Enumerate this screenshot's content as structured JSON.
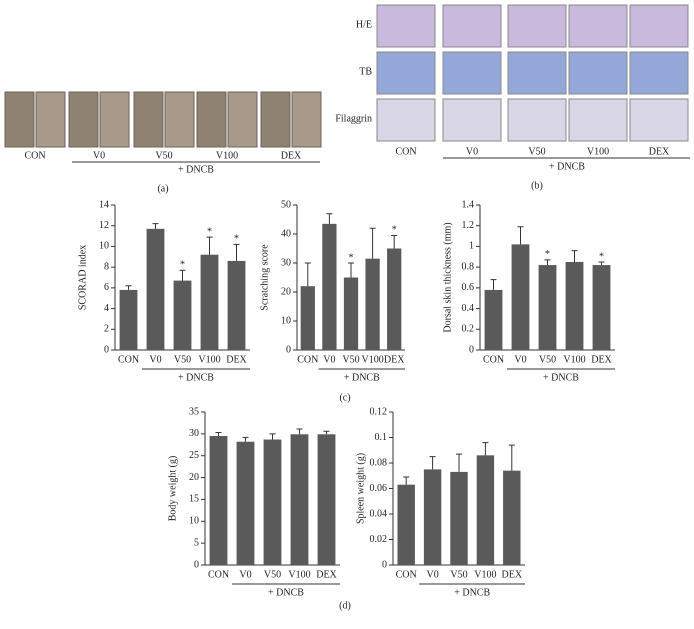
{
  "panels": {
    "a": {
      "label": "(a)",
      "groups": [
        "CON",
        "V0",
        "V50",
        "V100",
        "DEX"
      ],
      "group_label": "+ DNCB"
    },
    "b": {
      "label": "(b)",
      "rows": [
        "H/E",
        "TB",
        "Filaggrin"
      ],
      "columns": [
        "CON",
        "V0",
        "V50",
        "V100",
        "DEX"
      ],
      "group_label": "+ DNCB"
    },
    "c": {
      "label": "(c)"
    },
    "d": {
      "label": "(d)"
    }
  },
  "chart_data": [
    {
      "type": "bar",
      "y_label": "SCORAD index",
      "categories": [
        "CON",
        "V0",
        "V50",
        "V100",
        "DEX"
      ],
      "values": [
        5.8,
        11.7,
        6.7,
        9.2,
        8.6
      ],
      "errors": [
        0.4,
        0.5,
        1.0,
        1.7,
        1.6
      ],
      "significance": [
        null,
        null,
        "*",
        "*",
        "*"
      ],
      "group_label": "+ DNCB",
      "color": "#5a5a5a",
      "ylim": [
        0,
        14
      ],
      "yticks": [
        0,
        2,
        4,
        6,
        8,
        10,
        12,
        14
      ]
    },
    {
      "type": "bar",
      "y_label": "Scratching score",
      "categories": [
        "CON",
        "V0",
        "V50",
        "V100",
        "DEX"
      ],
      "values": [
        22,
        43.5,
        25,
        31.5,
        35
      ],
      "errors": [
        8,
        3.5,
        5,
        10.5,
        4.5
      ],
      "significance": [
        null,
        null,
        "*",
        null,
        "*"
      ],
      "group_label": "+ DNCB",
      "color": "#5a5a5a",
      "ylim": [
        0,
        50
      ],
      "yticks": [
        0,
        10,
        20,
        30,
        40,
        50
      ]
    },
    {
      "type": "bar",
      "y_label": "Dorsal skin thickness (mm)",
      "categories": [
        "CON",
        "V0",
        "V50",
        "V100",
        "DEX"
      ],
      "values": [
        0.58,
        1.02,
        0.82,
        0.85,
        0.82
      ],
      "errors": [
        0.1,
        0.17,
        0.05,
        0.11,
        0.03
      ],
      "significance": [
        null,
        null,
        "*",
        null,
        "*"
      ],
      "group_label": "+ DNCB",
      "color": "#5a5a5a",
      "ylim": [
        0,
        1.4
      ],
      "yticks": [
        0,
        0.2,
        0.4,
        0.6,
        0.8,
        1,
        1.2,
        1.4
      ]
    },
    {
      "type": "bar",
      "y_label": "Body weight (g)",
      "categories": [
        "CON",
        "V0",
        "V50",
        "V100",
        "DEX"
      ],
      "values": [
        29.5,
        28.2,
        28.7,
        29.9,
        29.9
      ],
      "errors": [
        0.8,
        1.0,
        1.3,
        1.2,
        0.7
      ],
      "group_label": "+ DNCB",
      "color": "#5a5a5a",
      "ylim": [
        0,
        35
      ],
      "yticks": [
        0,
        5,
        10,
        15,
        20,
        25,
        30,
        35
      ]
    },
    {
      "type": "bar",
      "y_label": "Spleen weight (g)",
      "categories": [
        "CON",
        "V0",
        "V50",
        "V100",
        "DEX"
      ],
      "values": [
        0.063,
        0.075,
        0.073,
        0.086,
        0.074
      ],
      "errors": [
        0.006,
        0.01,
        0.014,
        0.01,
        0.02
      ],
      "group_label": "+ DNCB",
      "color": "#5a5a5a",
      "ylim": [
        0,
        0.12
      ],
      "yticks": [
        0,
        0.02,
        0.04,
        0.06,
        0.08,
        0.1,
        0.12
      ]
    }
  ]
}
